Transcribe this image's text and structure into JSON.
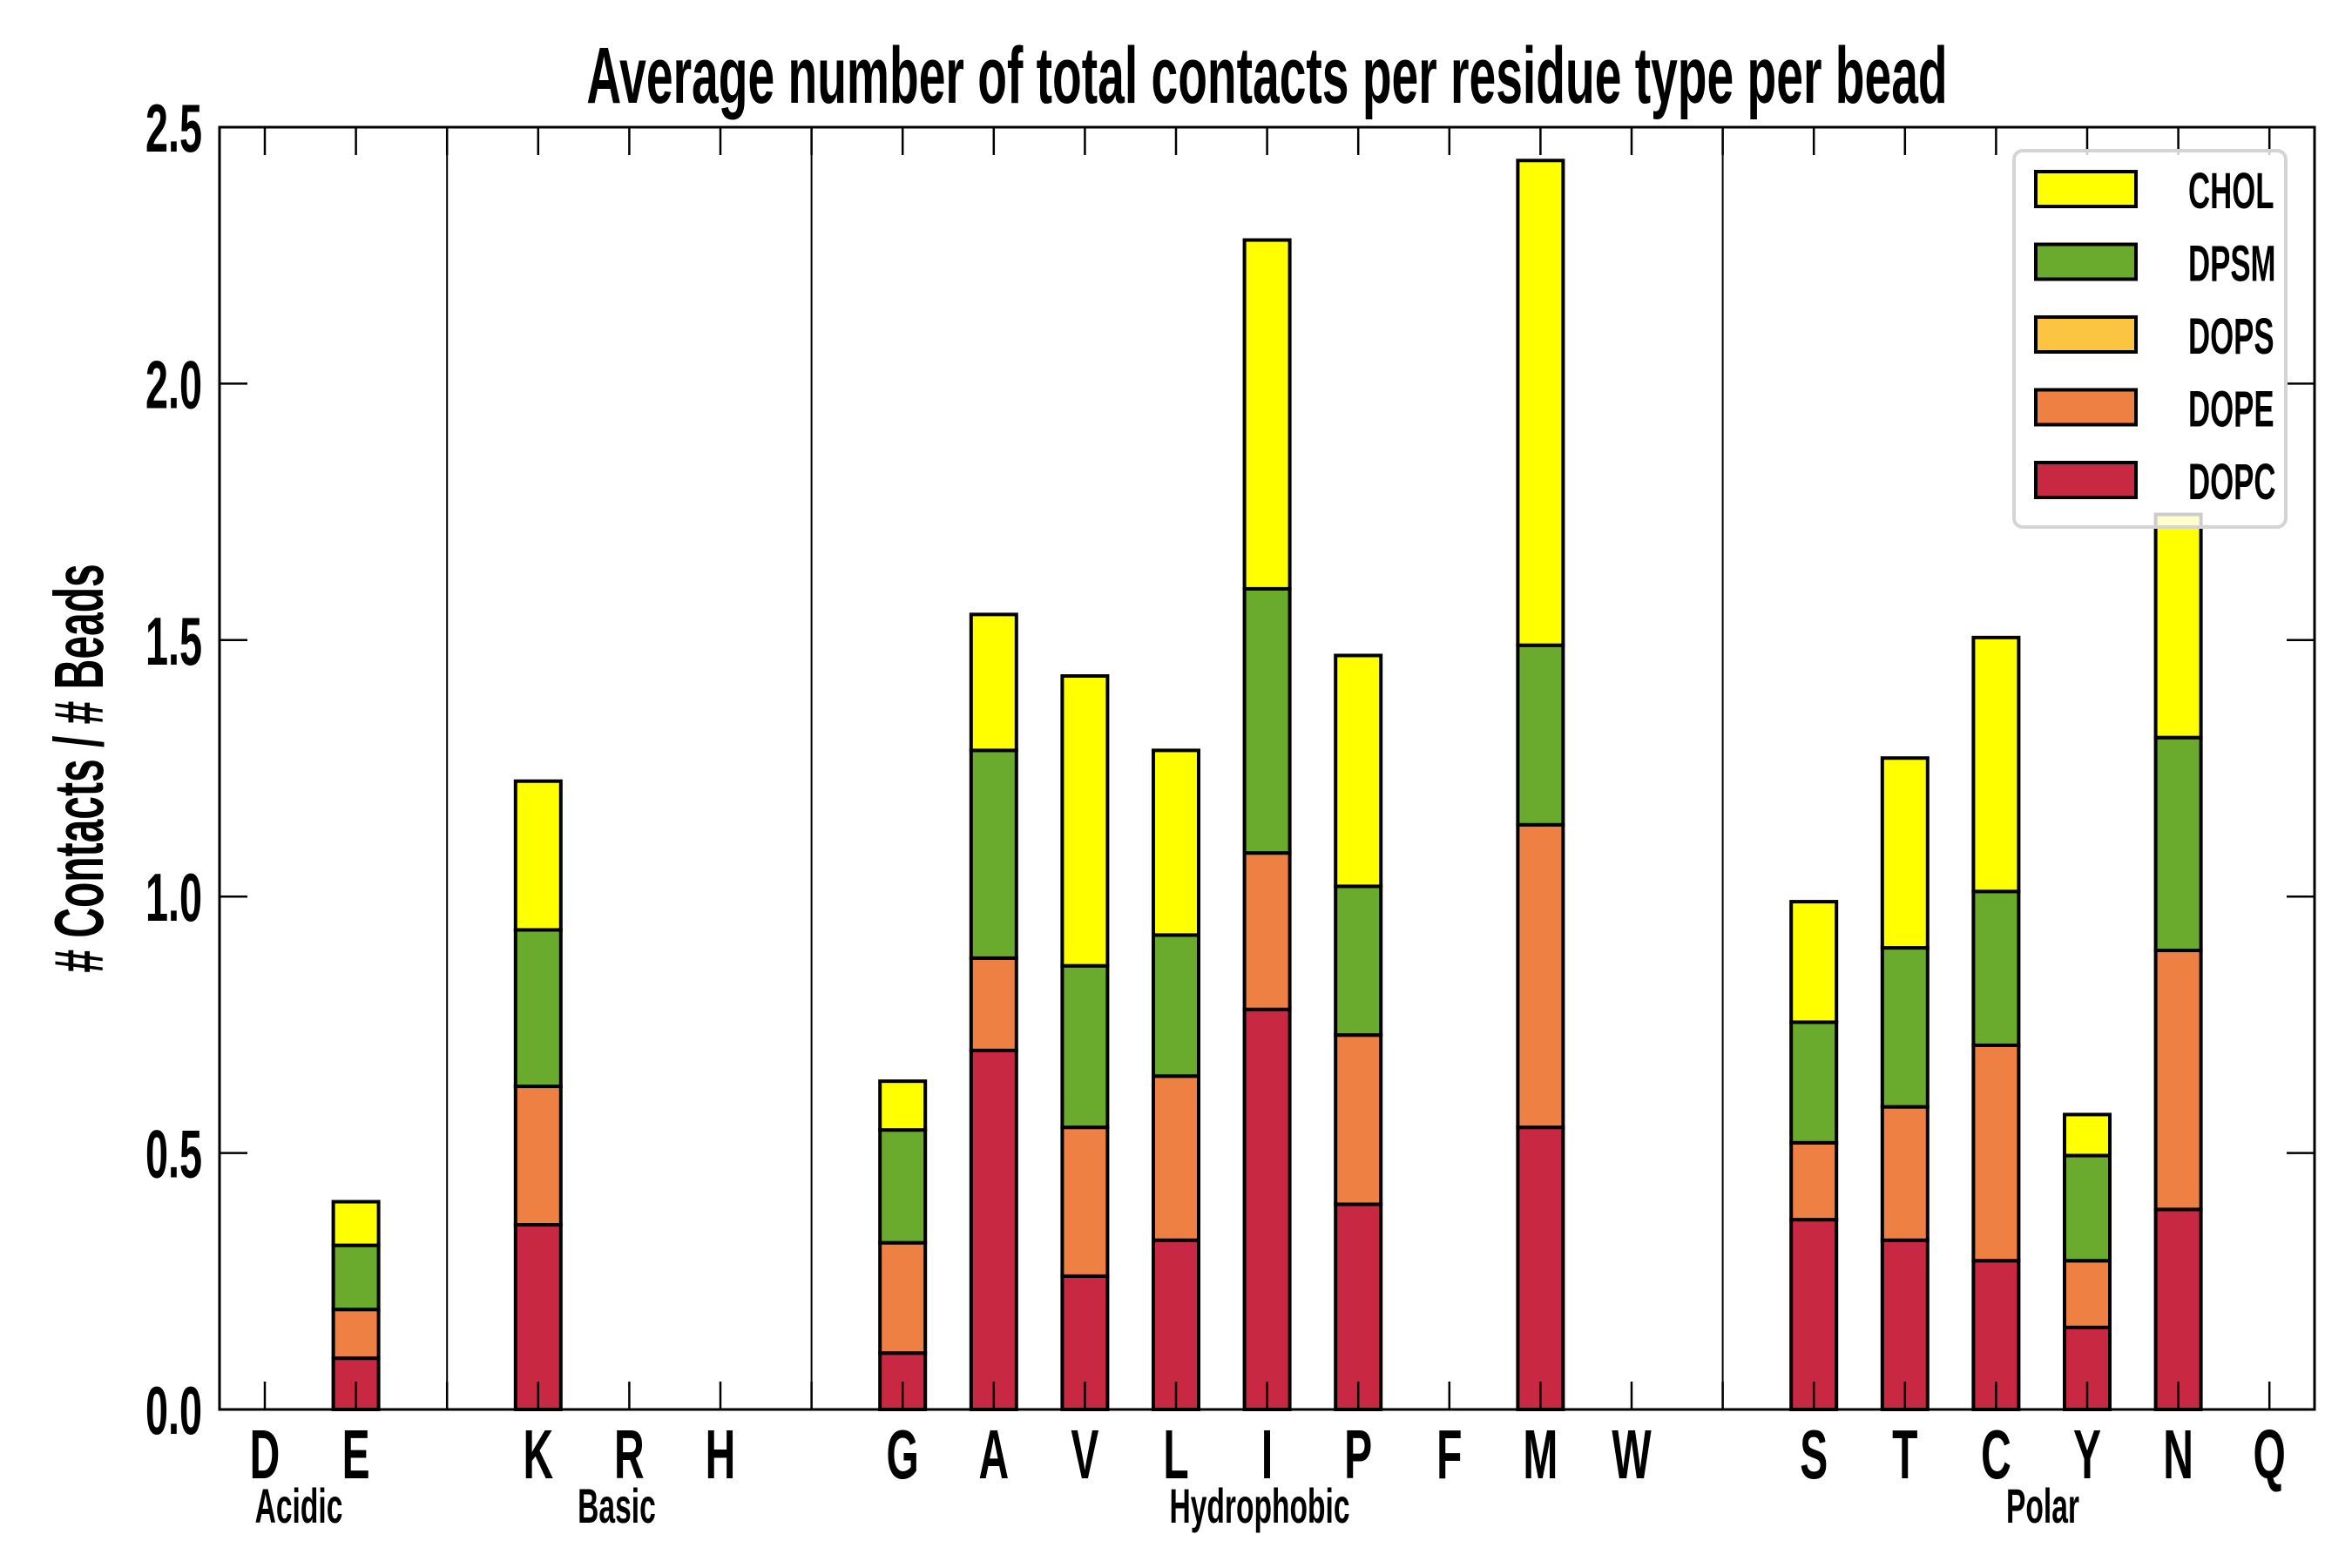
{
  "chart_data": {
    "type": "bar",
    "stacked": true,
    "title": "Average number of total contacts per residue type per bead",
    "xlabel": "",
    "ylabel": "# Contacts / # Beads",
    "ylim": [
      0,
      2.5
    ],
    "yticks": [
      "0.0",
      "0.5",
      "1.0",
      "1.5",
      "2.0",
      "2.5"
    ],
    "ytick_values": [
      0,
      0.5,
      1.0,
      1.5,
      2.0,
      2.5
    ],
    "grid": false,
    "legend_position": "top-right",
    "categories": [
      "D",
      "E",
      "K",
      "R",
      "H",
      "G",
      "A",
      "V",
      "L",
      "I",
      "P",
      "F",
      "M",
      "W",
      "S",
      "T",
      "C",
      "Y",
      "N",
      "Q"
    ],
    "groups": [
      {
        "name": "Acidic",
        "members": [
          "D",
          "E"
        ]
      },
      {
        "name": "Basic",
        "members": [
          "K",
          "R",
          "H"
        ]
      },
      {
        "name": "Hydrophobic",
        "members": [
          "G",
          "A",
          "V",
          "L",
          "I",
          "P",
          "F",
          "M",
          "W"
        ]
      },
      {
        "name": "Polar",
        "members": [
          "S",
          "T",
          "C",
          "Y",
          "N",
          "Q"
        ]
      }
    ],
    "series": [
      {
        "name": "DOPC",
        "color": "#C82842",
        "values": [
          0,
          0.1,
          0.36,
          0,
          0,
          0.11,
          0.7,
          0.26,
          0.33,
          0.78,
          0.4,
          0,
          0.55,
          0,
          0.37,
          0.33,
          0.29,
          0.16,
          0.39,
          0
        ]
      },
      {
        "name": "DOPE",
        "color": "#EF8044",
        "values": [
          0,
          0.095,
          0.27,
          0,
          0,
          0.215,
          0.18,
          0.29,
          0.32,
          0.305,
          0.33,
          0,
          0.59,
          0,
          0.15,
          0.26,
          0.42,
          0.13,
          0.505,
          0
        ]
      },
      {
        "name": "DOPS",
        "color": "#FBC542",
        "values": [
          0,
          0,
          0,
          0,
          0,
          0,
          0,
          0,
          0,
          0,
          0,
          0,
          0,
          0,
          0,
          0,
          0,
          0,
          0,
          0
        ]
      },
      {
        "name": "DPSM",
        "color": "#6AAB2E",
        "values": [
          0,
          0.125,
          0.305,
          0,
          0,
          0.22,
          0.405,
          0.315,
          0.275,
          0.515,
          0.29,
          0,
          0.35,
          0,
          0.235,
          0.31,
          0.3,
          0.205,
          0.415,
          0
        ]
      },
      {
        "name": "CHOL",
        "color": "#FFFF00",
        "values": [
          0,
          0.085,
          0.29,
          0,
          0,
          0.095,
          0.265,
          0.565,
          0.36,
          0.68,
          0.45,
          0,
          0.945,
          0,
          0.235,
          0.37,
          0.495,
          0.08,
          0.435,
          0
        ]
      }
    ],
    "legend_order": [
      "CHOL",
      "DPSM",
      "DOPS",
      "DOPE",
      "DOPC"
    ]
  }
}
